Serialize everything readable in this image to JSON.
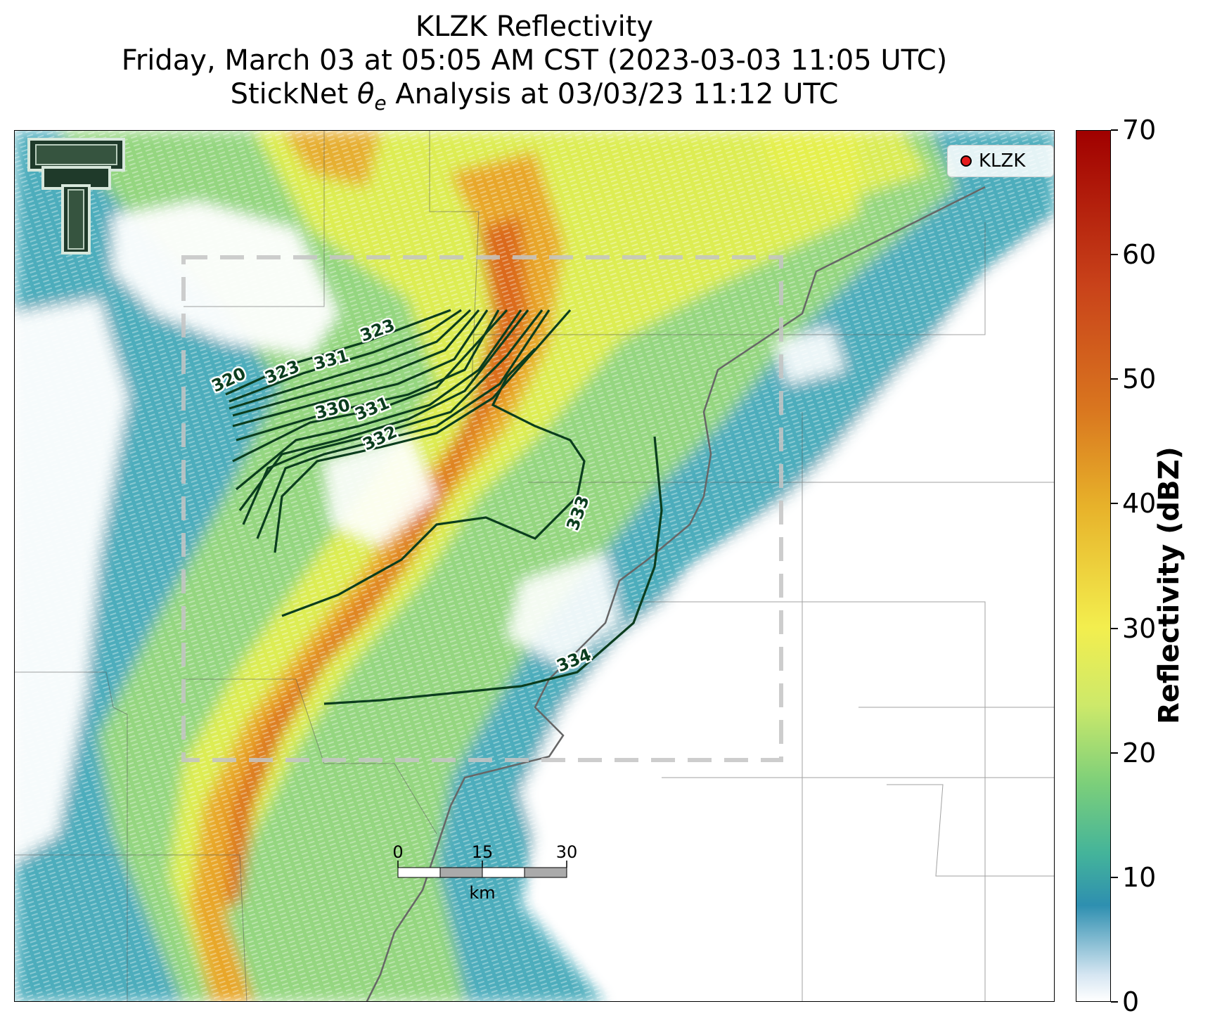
{
  "title": {
    "line1": "KLZK Reflectivity",
    "line2": "Friday, March 03 at 05:05 AM CST (2023-03-03 11:05 UTC)",
    "line3": "StickNet θe Analysis at 03/03/23 11:12 UTC"
  },
  "legend": {
    "label": "KLZK",
    "marker_color": "#e51c1c"
  },
  "colorbar": {
    "title": "Reflectivity (dBZ)",
    "ticks": [
      "0",
      "10",
      "20",
      "30",
      "40",
      "50",
      "60",
      "70"
    ],
    "range": [
      0,
      70
    ]
  },
  "contours": {
    "color": "#0b3d1e",
    "labels": [
      "320",
      "323",
      "323",
      "331",
      "330",
      "331",
      "332",
      "333",
      "334"
    ]
  },
  "scale_bar": {
    "ticks": [
      "0",
      "15",
      "30"
    ],
    "unit": "km"
  },
  "logo": {
    "icon": "texas-tech-double-t-logo"
  },
  "analysis_box": {
    "style": "dashed-gray"
  }
}
